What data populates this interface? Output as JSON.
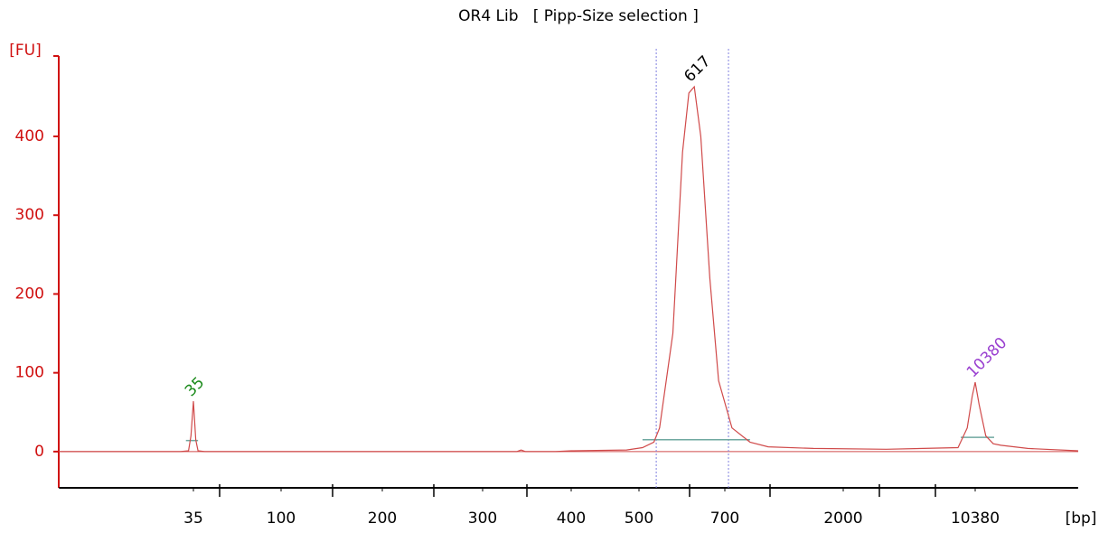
{
  "chart_data": {
    "type": "line",
    "title": "OR4 Lib   [ Pipp-Size selection ]",
    "xlabel": "[bp]",
    "ylabel": "[FU]",
    "color": "#d04a4a",
    "axis_color": "#d01010",
    "x": [
      7,
      30,
      33,
      34,
      35,
      36,
      37,
      40,
      300,
      335,
      340,
      345,
      380,
      400,
      480,
      507,
      530,
      542,
      571,
      593,
      608,
      621,
      637,
      660,
      683,
      746,
      875,
      1028,
      1535,
      3420,
      8380,
      9400,
      10000,
      10380,
      10900,
      11850,
      13000,
      14300,
      20000,
      37500
    ],
    "values": [
      0,
      0,
      1,
      20,
      64,
      15,
      1,
      0,
      0,
      0,
      2,
      0,
      0,
      1,
      2,
      5,
      12,
      30,
      150,
      380,
      455,
      463,
      400,
      220,
      90,
      30,
      12,
      6,
      4,
      3,
      5,
      30,
      70,
      88,
      60,
      20,
      10,
      8,
      4,
      1
    ],
    "xlim": [
      7,
      37500
    ],
    "xticks": [
      35,
      100,
      200,
      300,
      400,
      500,
      700,
      2000,
      10380
    ],
    "ylim": [
      -46,
      502
    ],
    "yticks": [
      0,
      100,
      200,
      300,
      400
    ],
    "peaks": [
      {
        "value": 35,
        "fu": 64,
        "color": "#1a8a1a"
      },
      {
        "value": 617,
        "fu": 463,
        "color": "#000000"
      },
      {
        "value": 10380,
        "fu": 88,
        "color": "#9a40d0"
      }
    ],
    "region_lines": [
      535,
      723
    ],
    "region_color": "#8080e0",
    "baselines": [
      {
        "x": [
          32,
          37
        ],
        "fu": 14
      },
      {
        "x": [
          507,
          875
        ],
        "fu": 15
      },
      {
        "x": [
          8670,
          13150
        ],
        "fu": 18
      }
    ],
    "baseline_color": "#6fa8a0"
  }
}
